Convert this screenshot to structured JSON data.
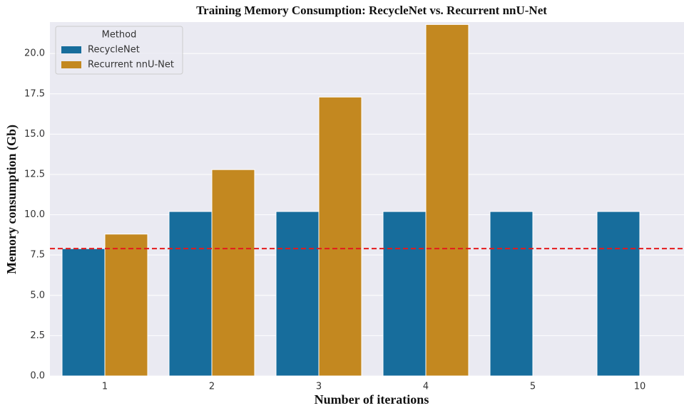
{
  "chart_data": {
    "type": "bar",
    "title": "Training Memory Consumption: RecycleNet vs. Recurrent nnU-Net",
    "x_label": "Number of iterations",
    "y_label": "Memory consumption (Gb)",
    "categories": [
      "1",
      "2",
      "3",
      "4",
      "5",
      "10"
    ],
    "series": [
      {
        "name": "RecycleNet",
        "color": "#176d9c",
        "values": [
          7.9,
          10.2,
          10.2,
          10.2,
          10.2,
          10.2
        ]
      },
      {
        "name": "Recurrent nnU-Net",
        "color": "#c38820",
        "values": [
          8.8,
          12.8,
          17.3,
          21.8,
          null,
          null
        ]
      }
    ],
    "reference_line": {
      "value": 7.9,
      "color": "#e41a1c"
    },
    "legend_title": "Method",
    "legend_position": "upper left",
    "ylim": [
      0,
      21.95
    ],
    "yticks": [
      {
        "value": 0,
        "label": "0.0"
      },
      {
        "value": 2.5,
        "label": "2.5"
      },
      {
        "value": 5,
        "label": "5.0"
      },
      {
        "value": 7.5,
        "label": "7.5"
      },
      {
        "value": 10,
        "label": "10.0"
      },
      {
        "value": 12.5,
        "label": "12.5"
      },
      {
        "value": 15,
        "label": "15.0"
      },
      {
        "value": 17.5,
        "label": "17.5"
      },
      {
        "value": 20,
        "label": "20.0"
      }
    ],
    "grid": true
  }
}
